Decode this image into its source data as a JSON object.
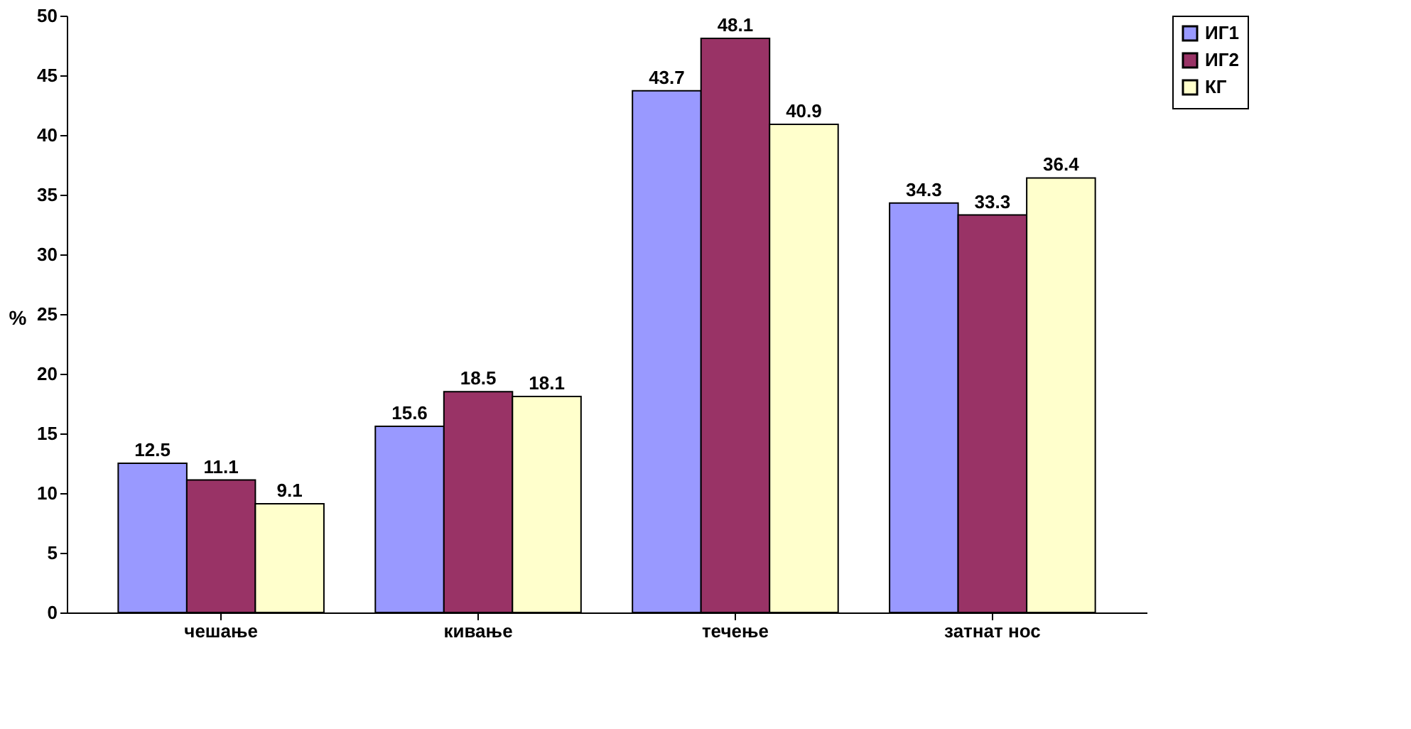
{
  "chart_data": {
    "type": "bar",
    "ylabel": "%",
    "categories": [
      "чешање",
      "кивање",
      "течење",
      "затнат нос"
    ],
    "series": [
      {
        "name": "ИГ1",
        "color": "#9999ff",
        "values": [
          12.5,
          15.6,
          43.7,
          34.3
        ]
      },
      {
        "name": "ИГ2",
        "color": "#993366",
        "values": [
          11.1,
          18.5,
          48.1,
          33.3
        ]
      },
      {
        "name": "КГ",
        "color": "#ffffcc",
        "values": [
          9.1,
          18.1,
          40.9,
          36.4
        ]
      }
    ],
    "ylim": [
      0,
      50
    ],
    "yticks": [
      0,
      5,
      10,
      15,
      20,
      25,
      30,
      35,
      40,
      45,
      50
    ],
    "grid": false,
    "legend": "right",
    "data_labels": true
  }
}
